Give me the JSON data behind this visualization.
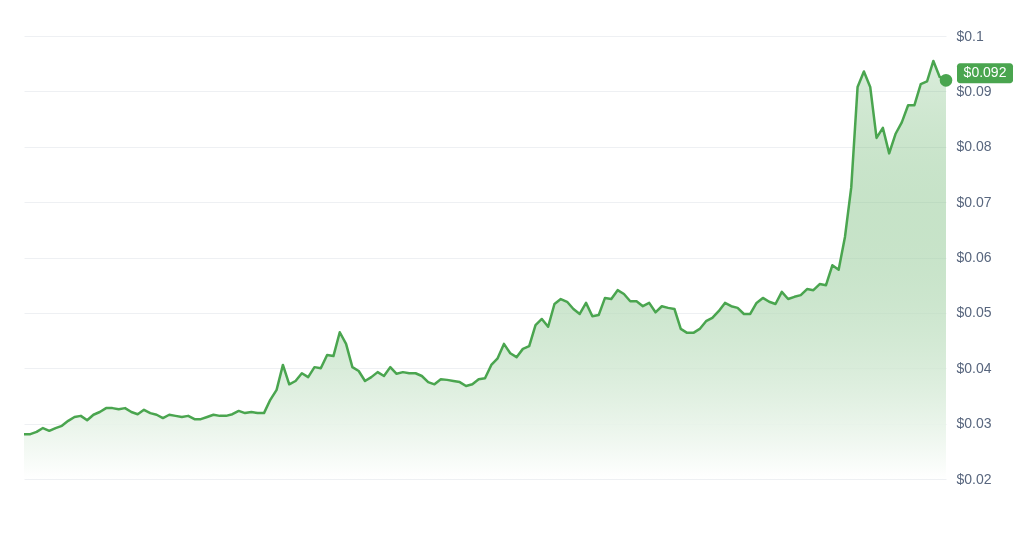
{
  "chart_data": {
    "type": "area",
    "categories": [
      null,
      null,
      null,
      null,
      null,
      null,
      null,
      null,
      null,
      null,
      null,
      null,
      null,
      null,
      null,
      null,
      null,
      null,
      null,
      null,
      null,
      null,
      null,
      null,
      null,
      null,
      null,
      null,
      null,
      null,
      null,
      null,
      null,
      null,
      null,
      null,
      null,
      null,
      null,
      null,
      null,
      null,
      null,
      null,
      null,
      null,
      null,
      null,
      null,
      null,
      null,
      null,
      null,
      null,
      null,
      null,
      null,
      null,
      null,
      null,
      null,
      null,
      null,
      null,
      null,
      null,
      null,
      null,
      null,
      null,
      null,
      null,
      null,
      null,
      null,
      null,
      null,
      null,
      null,
      null,
      null,
      null,
      null,
      null,
      null,
      null,
      null,
      null,
      null,
      null,
      null,
      null,
      null,
      null,
      null,
      null,
      null,
      null,
      null,
      null,
      null,
      null,
      null,
      null,
      null,
      null,
      null,
      null,
      null,
      null,
      null,
      null,
      null,
      null,
      null,
      null,
      null,
      null,
      null,
      null,
      null,
      null,
      null,
      null,
      null,
      null,
      null,
      null,
      null,
      null,
      null,
      null,
      null,
      null,
      null,
      null,
      null,
      null,
      null,
      null,
      null,
      null,
      null,
      null,
      null,
      null,
      null
    ],
    "series": [
      {
        "color": "#4aa54f",
        "values": [
          0.0281,
          0.0281,
          0.0285,
          0.0292,
          0.0287,
          0.0292,
          0.0296,
          0.0305,
          0.0312,
          0.0314,
          0.0306,
          0.0316,
          0.0321,
          0.0328,
          0.0328,
          0.0326,
          0.0328,
          0.0321,
          0.0317,
          0.0325,
          0.0319,
          0.0316,
          0.031,
          0.0316,
          0.0314,
          0.0312,
          0.0314,
          0.0308,
          0.0308,
          0.0312,
          0.0316,
          0.0314,
          0.0314,
          0.0317,
          0.0323,
          0.0319,
          0.0321,
          0.0319,
          0.0319,
          0.0343,
          0.0361,
          0.0406,
          0.0371,
          0.0377,
          0.0391,
          0.0384,
          0.0402,
          0.04,
          0.0424,
          0.0422,
          0.0465,
          0.0444,
          0.0402,
          0.0395,
          0.0377,
          0.0384,
          0.0393,
          0.0386,
          0.0402,
          0.039,
          0.0393,
          0.0391,
          0.0391,
          0.0386,
          0.0375,
          0.0371,
          0.038,
          0.0379,
          0.0377,
          0.0375,
          0.0368,
          0.0371,
          0.038,
          0.0382,
          0.0406,
          0.0418,
          0.0444,
          0.0427,
          0.042,
          0.0435,
          0.044,
          0.0478,
          0.0489,
          0.0475,
          0.0516,
          0.0525,
          0.052,
          0.0507,
          0.0498,
          0.0518,
          0.0494,
          0.0496,
          0.0527,
          0.0525,
          0.0541,
          0.0534,
          0.0521,
          0.0521,
          0.0512,
          0.0518,
          0.0501,
          0.0512,
          0.0509,
          0.0507,
          0.0471,
          0.0464,
          0.0464,
          0.0471,
          0.0485,
          0.0491,
          0.0503,
          0.0518,
          0.0512,
          0.0509,
          0.0498,
          0.0498,
          0.0518,
          0.0527,
          0.052,
          0.0516,
          0.0538,
          0.0525,
          0.0529,
          0.0532,
          0.0543,
          0.0541,
          0.0552,
          0.055,
          0.0586,
          0.0578,
          0.0637,
          0.0727,
          0.0908,
          0.0936,
          0.0908,
          0.0816,
          0.0834,
          0.0788,
          0.0823,
          0.0844,
          0.0875,
          0.0875,
          0.0913,
          0.0918,
          0.0955,
          0.0926,
          0.092
        ]
      }
    ],
    "ylim": [
      0.02,
      0.1
    ],
    "yticks": [
      {
        "value": 0.02,
        "label": "$0.02"
      },
      {
        "value": 0.03,
        "label": "$0.03"
      },
      {
        "value": 0.04,
        "label": "$0.04"
      },
      {
        "value": 0.05,
        "label": "$0.05"
      },
      {
        "value": 0.06,
        "label": "$0.06"
      },
      {
        "value": 0.07,
        "label": "$0.07"
      },
      {
        "value": 0.08,
        "label": "$0.08"
      },
      {
        "value": 0.09,
        "label": "$0.09"
      },
      {
        "value": 0.1,
        "label": "$0.1"
      }
    ],
    "grid": "y",
    "annotations": [
      "$0.092"
    ]
  }
}
